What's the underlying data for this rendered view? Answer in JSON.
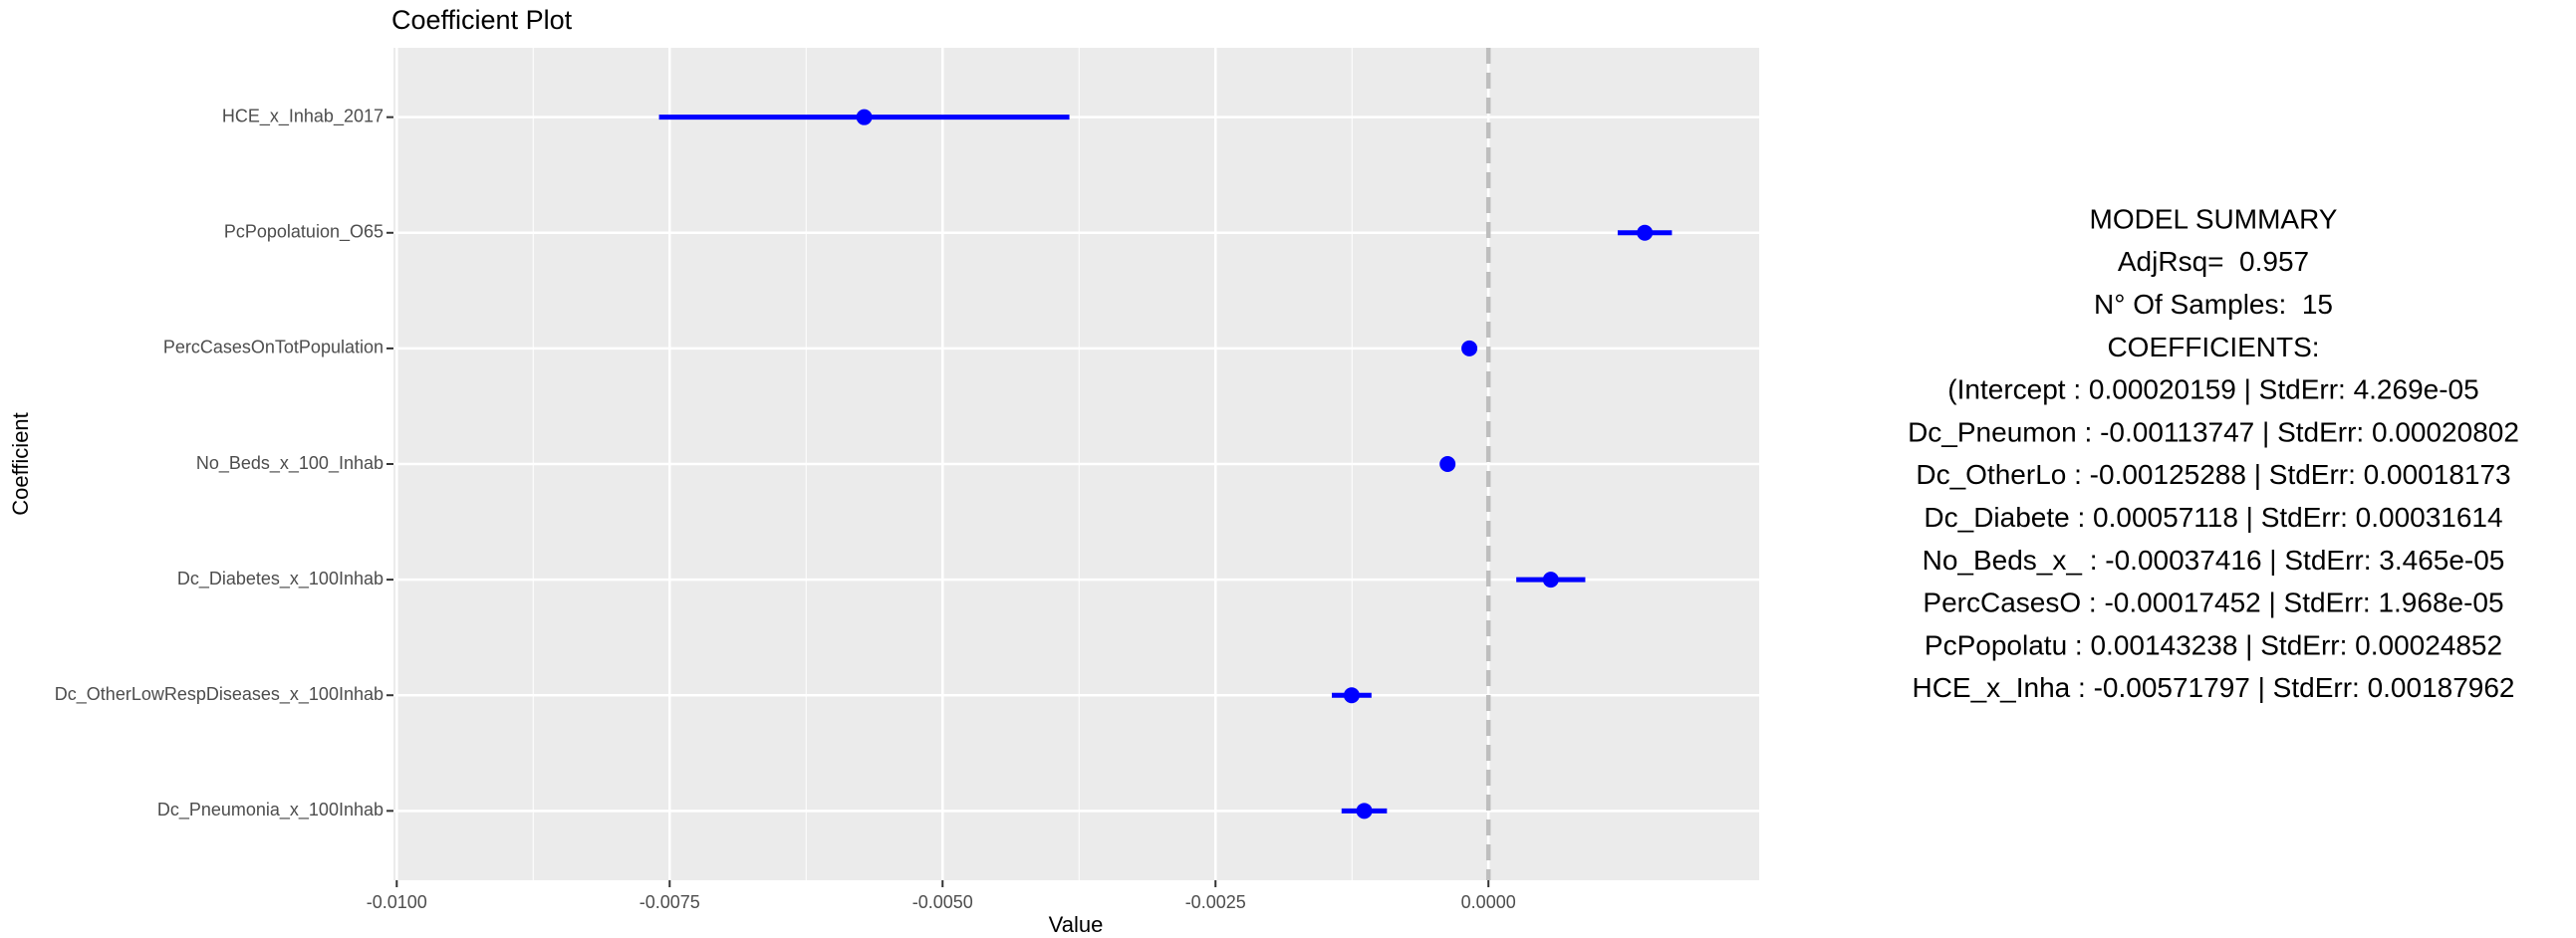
{
  "chart_data": {
    "type": "errorbar",
    "title": "Coefficient Plot",
    "xlabel": "Value",
    "ylabel": "Coefficient",
    "categories": [
      "HCE_x_Inhab_2017",
      "PcPopolatuion_O65",
      "PercCasesOnTotPopulation",
      "No_Beds_x_100_Inhab",
      "Dc_Diabetes_x_100Inhab",
      "Dc_OtherLowRespDiseases_x_100Inhab",
      "Dc_Pneumonia_x_100Inhab"
    ],
    "values": [
      -0.00571797,
      0.00143238,
      -0.00017452,
      -0.00037416,
      0.00057118,
      -0.00125288,
      -0.00113747
    ],
    "errors": [
      0.00187962,
      0.00024852,
      1.968e-05,
      3.465e-05,
      0.00031614,
      0.00018173,
      0.00020802
    ],
    "color": "#0000ff",
    "xlim": [
      -0.01003,
      0.00248
    ],
    "xticks": [
      {
        "value": -0.01,
        "label": "-0.0100"
      },
      {
        "value": -0.0075,
        "label": "-0.0075"
      },
      {
        "value": -0.005,
        "label": "-0.0050"
      },
      {
        "value": -0.0025,
        "label": "-0.0025"
      },
      {
        "value": 0,
        "label": "0.0000"
      }
    ],
    "vline": 0,
    "grid": true
  },
  "summary": {
    "title": "MODEL SUMMARY",
    "lines": [
      "AdjRsq=  0.957",
      "N° Of Samples:  15",
      "COEFFICIENTS:",
      "(Intercept : 0.00020159 | StdErr: 4.269e-05",
      "Dc_Pneumon : -0.00113747 | StdErr: 0.00020802",
      "Dc_OtherLo : -0.00125288 | StdErr: 0.00018173",
      "Dc_Diabete : 0.00057118 | StdErr: 0.00031614",
      "No_Beds_x_ : -0.00037416 | StdErr: 3.465e-05",
      "PercCasesO : -0.00017452 | StdErr: 1.968e-05",
      "PcPopolatu : 0.00143238 | StdErr: 0.00024852",
      "HCE_x_Inha : -0.00571797 | StdErr: 0.00187962"
    ]
  }
}
